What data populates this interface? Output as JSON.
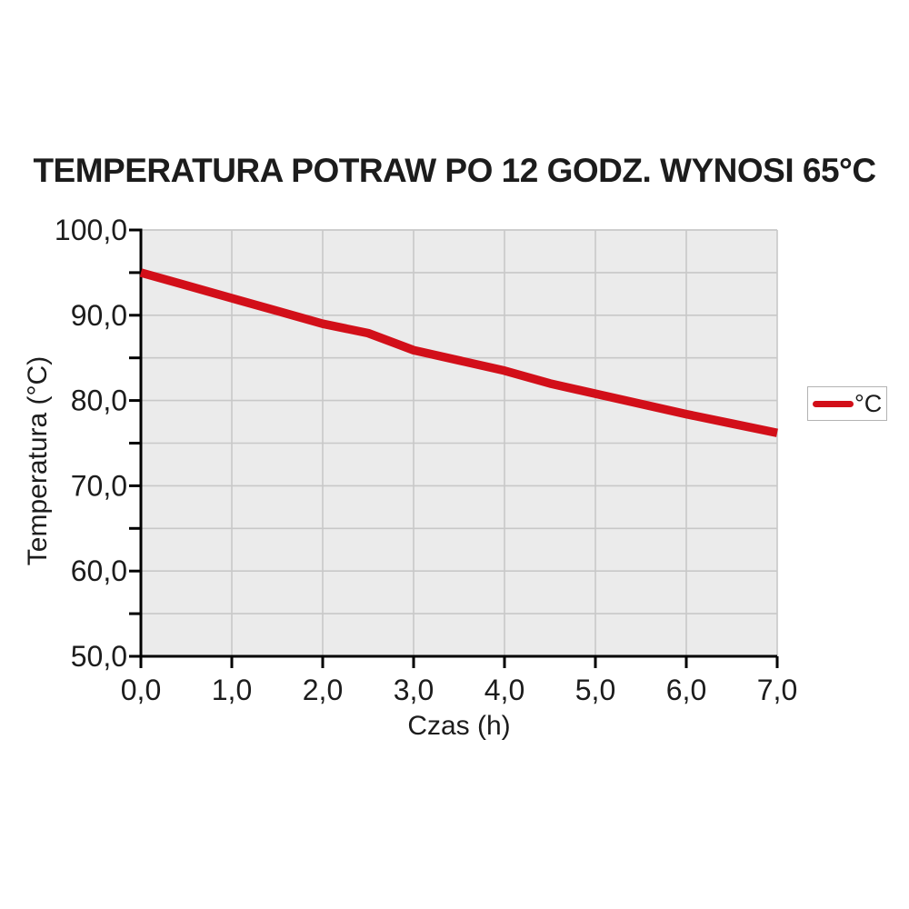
{
  "title": "TEMPERATURA POTRAW PO 12 GODZ. WYNOSI 65°C",
  "colors": {
    "line_red": "#d20f19",
    "plot_background": "#ebebeb",
    "gridline": "#c8c8c8",
    "axis": "#000000",
    "text": "#1c1c1c",
    "legend_border": "#b3b3b3"
  },
  "chart_data": {
    "type": "line",
    "title": "TEMPERATURA POTRAW PO 12 GODZ. WYNOSI 65°C",
    "xlabel": "Czas (h)",
    "ylabel": "Temperatura (°C)",
    "xlim": [
      0,
      7
    ],
    "ylim": [
      50,
      100
    ],
    "x_major_step": 1,
    "y_major_step": 10,
    "y_minor_step": 5,
    "grid": true,
    "x_tick_labels": [
      "0,0",
      "1,0",
      "2,0",
      "3,0",
      "4,0",
      "5,0",
      "6,0",
      "7,0"
    ],
    "y_tick_labels": [
      "100,0",
      "90,0",
      "80,0",
      "70,0",
      "60,0",
      "50,0"
    ],
    "legend": {
      "position": "right",
      "entries": [
        {
          "label": "°C",
          "color": "#d20f19"
        }
      ]
    },
    "series": [
      {
        "name": "°C",
        "color": "#d20f19",
        "x": [
          0.0,
          0.5,
          1.0,
          1.5,
          2.0,
          2.5,
          3.0,
          3.5,
          4.0,
          4.5,
          5.0,
          5.5,
          6.0,
          6.5,
          7.0
        ],
        "values": [
          95.0,
          93.5,
          92.0,
          90.5,
          89.0,
          87.9,
          85.9,
          84.7,
          83.5,
          82.0,
          80.8,
          79.6,
          78.4,
          77.3,
          76.2
        ]
      }
    ]
  }
}
